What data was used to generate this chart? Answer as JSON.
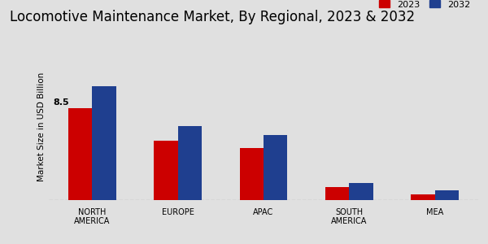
{
  "title": "Locomotive Maintenance Market, By Regional, 2023 & 2032",
  "ylabel": "Market Size in USD Billion",
  "categories": [
    "NORTH\nAMERICA",
    "EUROPE",
    "APAC",
    "SOUTH\nAMERICA",
    "MEA"
  ],
  "values_2023": [
    8.5,
    5.5,
    4.8,
    1.2,
    0.55
  ],
  "values_2032": [
    10.5,
    6.8,
    6.0,
    1.55,
    0.9
  ],
  "color_2023": "#cc0000",
  "color_2032": "#1f3f8f",
  "annotation_value": "8.5",
  "background_color": "#e0e0e0",
  "title_fontsize": 12,
  "label_fontsize": 7.5,
  "tick_fontsize": 7,
  "bar_width": 0.28,
  "ylim": [
    0,
    13.5
  ],
  "legend_labels": [
    "2023",
    "2032"
  ],
  "bottom_stripe_color": "#cc0000",
  "grid_color": "#999999"
}
